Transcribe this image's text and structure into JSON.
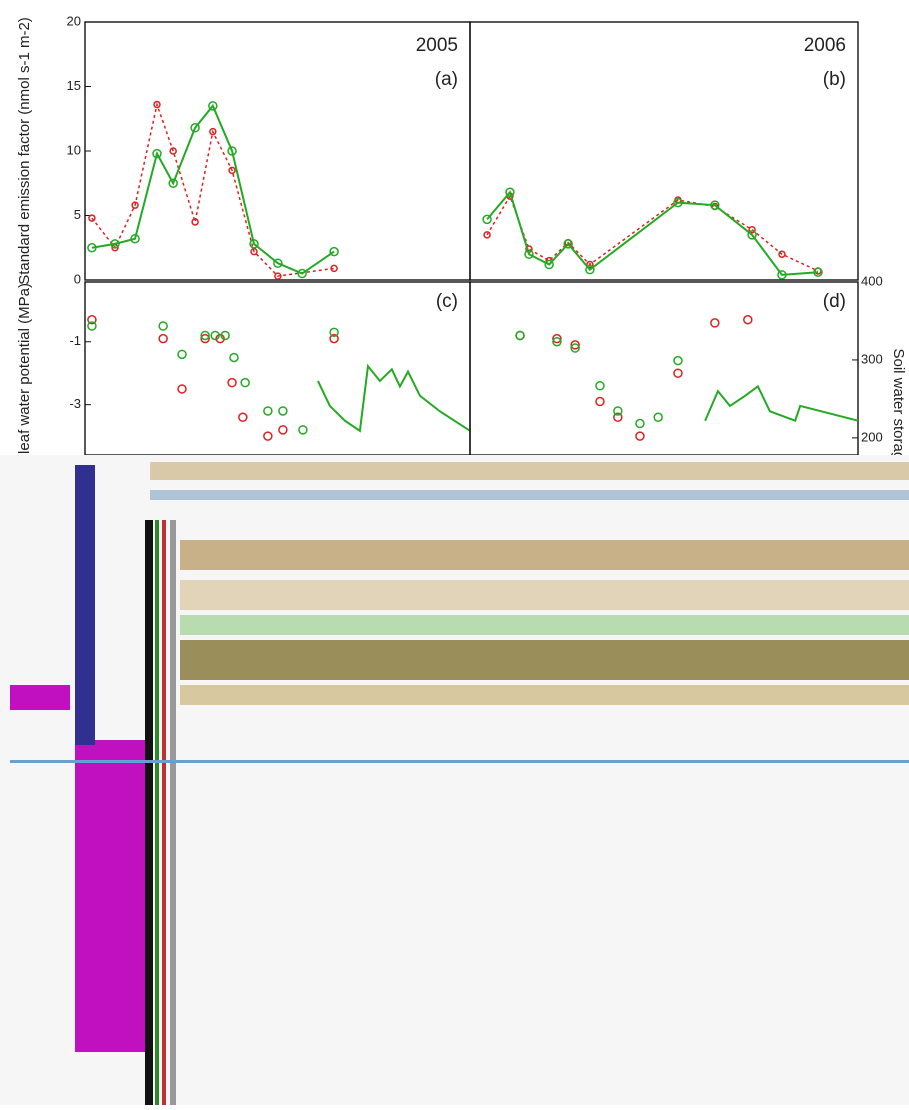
{
  "chart_data": [
    {
      "type": "line",
      "title": "2005",
      "panel_label": "(a)",
      "y_label": "Standard emission factor (nmol s-1 m-2)",
      "xlim": [
        0,
        100
      ],
      "ylim": [
        0,
        20
      ],
      "yticks": [
        0,
        5,
        10,
        15,
        20
      ],
      "series": [
        {
          "color": "#e02020",
          "dash": true,
          "markers_only": false,
          "x": [
            1.8,
            7.8,
            13,
            18.7,
            22.9,
            28.6,
            33.2,
            38.2,
            43.9,
            50.1,
            64.7
          ],
          "values": [
            4.8,
            2.5,
            5.8,
            13.6,
            10,
            4.5,
            11.5,
            8.5,
            2.2,
            0.3,
            0.9
          ]
        },
        {
          "color": "#22aa22",
          "dash": false,
          "markers_only": false,
          "x": [
            1.8,
            7.8,
            13,
            18.7,
            22.9,
            28.6,
            33.2,
            38.2,
            43.9,
            50.1,
            56.4,
            64.7
          ],
          "values": [
            2.5,
            2.8,
            3.2,
            9.8,
            7.5,
            11.8,
            13.5,
            10,
            2.8,
            1.3,
            0.5,
            2.2
          ]
        }
      ]
    },
    {
      "type": "line",
      "title": "2006",
      "panel_label": "(b)",
      "xlim": [
        0,
        100
      ],
      "ylim": [
        0,
        20
      ],
      "series": [
        {
          "color": "#e02020",
          "dash": true,
          "markers_only": false,
          "x": [
            4.4,
            10.3,
            15.2,
            20.4,
            25.3,
            30.9,
            53.6,
            63.1,
            72.7,
            80.4,
            89.7
          ],
          "values": [
            3.5,
            6.5,
            2.4,
            1.5,
            2.9,
            1.2,
            6.2,
            5.7,
            3.9,
            2.0,
            0.7
          ]
        },
        {
          "color": "#22aa22",
          "dash": false,
          "markers_only": false,
          "x": [
            4.4,
            10.3,
            15.2,
            20.4,
            25.3,
            30.9,
            53.6,
            63.1,
            72.7,
            80.4,
            89.7
          ],
          "values": [
            4.7,
            6.8,
            2.0,
            1.2,
            2.8,
            0.8,
            6.0,
            5.8,
            3.5,
            0.4,
            0.6
          ]
        }
      ]
    },
    {
      "type": "line",
      "panel_label": "(c)",
      "y_label": "leaf water potential (MPa)",
      "xlim": [
        0,
        100
      ],
      "ylim": [
        -4.6,
        0.9
      ],
      "yticks": [
        -1,
        -3
      ],
      "y2lim": [
        178,
        400
      ],
      "series": [
        {
          "color": "#e02020",
          "dash": false,
          "markers_only": true,
          "x": [
            1.8,
            20.3,
            25.2,
            31.2,
            35.1,
            38.2,
            41.0,
            47.5,
            51.4,
            64.7
          ],
          "values": [
            -0.3,
            -0.9,
            -2.5,
            -0.9,
            -0.9,
            -2.3,
            -3.4,
            -4.0,
            -3.8,
            -0.9
          ]
        },
        {
          "color": "#22aa22",
          "dash": false,
          "markers_only": true,
          "x": [
            1.8,
            20.3,
            25.2,
            31.2,
            33.8,
            36.4,
            38.7,
            41.6,
            47.5,
            51.4,
            56.6,
            64.7
          ],
          "values": [
            -0.5,
            -0.5,
            -1.4,
            -0.8,
            -0.8,
            -0.8,
            -1.5,
            -2.3,
            -3.2,
            -3.2,
            -3.8,
            -0.7
          ]
        },
        {
          "color": "#22aa22",
          "dash": false,
          "markers_only": false,
          "axis": "y2",
          "x": [
            60.5,
            63.6,
            67.5,
            71.4,
            73.5,
            76.6,
            79.7,
            81.8,
            83.9,
            87.0,
            92.2,
            100
          ],
          "values": [
            273,
            241,
            222,
            209,
            292,
            273,
            288,
            266,
            285,
            254,
            234,
            209
          ]
        }
      ]
    },
    {
      "type": "line",
      "panel_label": "(d)",
      "y2_label": "Soil water storage",
      "xlim": [
        0,
        100
      ],
      "ylim": [
        -4.6,
        0.9
      ],
      "y2lim": [
        178,
        400
      ],
      "y2ticks": [
        200,
        300,
        400
      ],
      "series": [
        {
          "color": "#e02020",
          "dash": false,
          "markers_only": true,
          "x": [
            12.9,
            22.4,
            27.1,
            33.5,
            38.1,
            43.8,
            53.6,
            63.1,
            71.6
          ],
          "values": [
            -0.8,
            -0.9,
            -1.1,
            -2.9,
            -3.4,
            -4.0,
            -2.0,
            -0.4,
            -0.3
          ]
        },
        {
          "color": "#22aa22",
          "dash": false,
          "markers_only": true,
          "x": [
            12.9,
            22.4,
            27.1,
            33.5,
            38.1,
            43.8,
            48.5,
            53.6
          ],
          "values": [
            -0.8,
            -1.0,
            -1.2,
            -2.4,
            -3.2,
            -3.6,
            -3.4,
            -1.6
          ]
        },
        {
          "color": "#22aa22",
          "dash": false,
          "markers_only": false,
          "axis": "y2",
          "x": [
            60.6,
            63.9,
            67.0,
            70.9,
            74.2,
            77.3,
            83.8,
            85.1,
            100
          ],
          "values": [
            222,
            260,
            241,
            254,
            266,
            234,
            222,
            241,
            222
          ]
        }
      ]
    }
  ]
}
